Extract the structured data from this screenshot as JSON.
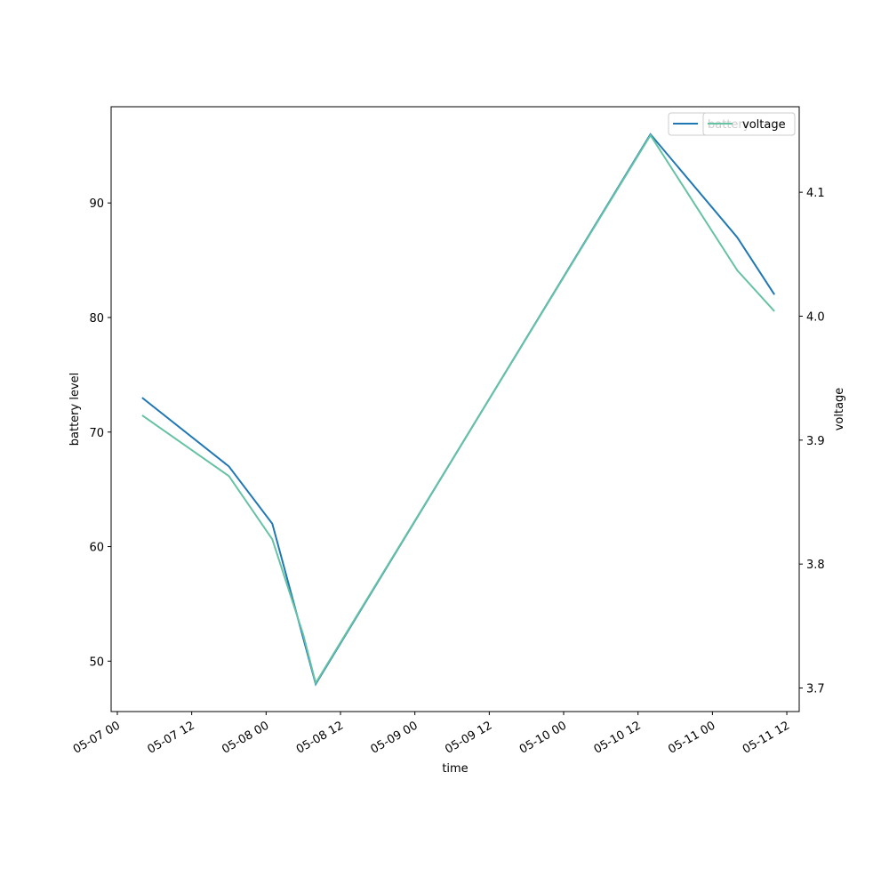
{
  "chart_data": {
    "type": "line",
    "xlabel": "time",
    "ylabel": "battery level",
    "y2label": "voltage",
    "x": [
      "05-07 04",
      "05-07 18",
      "05-08 01",
      "05-08 06",
      "05-08 08",
      "05-10 14",
      "05-11 04",
      "05-11 10"
    ],
    "series": [
      {
        "name": "battery",
        "color": "#1f77b4",
        "values": [
          73,
          67,
          62,
          52,
          48,
          96,
          87,
          82
        ]
      },
      {
        "name": "voltage",
        "color": "#66c2a5",
        "axis": "y2",
        "values": [
          3.92,
          3.871,
          3.82,
          3.743,
          3.704,
          4.146,
          4.037,
          4.004
        ]
      }
    ],
    "xlim": [
      "05-06 23",
      "05-11 14"
    ],
    "xticks": [
      "05-07 00",
      "05-07 12",
      "05-08 00",
      "05-08 12",
      "05-09 00",
      "05-09 12",
      "05-10 00",
      "05-10 12",
      "05-11 00",
      "05-11 12"
    ],
    "ylim": [
      45.6,
      98.4
    ],
    "yticks": [
      50,
      60,
      70,
      80,
      90
    ],
    "y2lim": [
      3.681,
      4.169
    ],
    "y2ticks": [
      3.7,
      3.8,
      3.9,
      4.0,
      4.1
    ],
    "legend": "upper right"
  }
}
